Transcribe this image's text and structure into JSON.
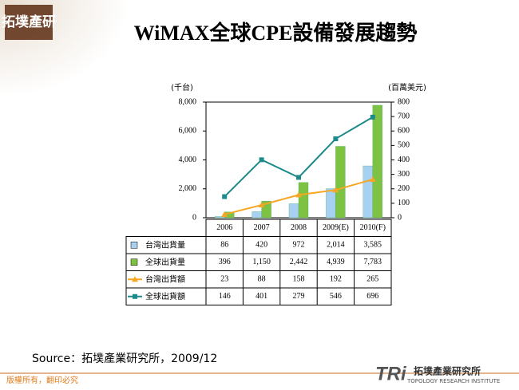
{
  "page": {
    "logo": "拓墣產研",
    "source": "Source：拓墣產業研究所，2009/12",
    "footer": "版權所有，翻印必究",
    "brand": "拓墣產業研究所",
    "brand_en": "TOPOLOGY RESEARCH INSTITUTE",
    "brand_mark": "TRi"
  },
  "chart_data": {
    "type": "bar",
    "title": "WiMAX全球CPE設備發展趨勢",
    "y_label": "(千台)",
    "y2_label": "(百萬美元)",
    "categories": [
      "2006",
      "2007",
      "2008",
      "2009(E)",
      "2010(F)"
    ],
    "series": [
      {
        "name": "台灣出貨量",
        "type": "bar",
        "color": "#a8d0f0",
        "values": [
          86,
          420,
          972,
          2014,
          3585
        ],
        "value_labels": [
          "86",
          "420",
          "972",
          "2,014",
          "3,585"
        ]
      },
      {
        "name": "全球出貨量",
        "type": "bar",
        "color": "#7dc242",
        "values": [
          396,
          1150,
          2442,
          4939,
          7783
        ],
        "value_labels": [
          "396",
          "1,150",
          "2,442",
          "4,939",
          "7,783"
        ]
      },
      {
        "name": "台灣出貨額",
        "type": "line",
        "axis": "y2",
        "color": "#f5a623",
        "marker": "triangle",
        "values": [
          23,
          88,
          158,
          192,
          265
        ]
      },
      {
        "name": "全球出貨額",
        "type": "line",
        "axis": "y2",
        "color": "#1e8a8a",
        "marker": "square",
        "values": [
          146,
          401,
          279,
          546,
          696
        ]
      }
    ],
    "ylim": [
      0,
      8000
    ],
    "yticks": [
      0,
      {
        "value": 2000,
        "label": "2,000"
      },
      {
        "value": 4000,
        "label": "4,000"
      },
      {
        "value": 6000,
        "label": "6,000"
      },
      {
        "value": 8000,
        "label": "8,000"
      }
    ],
    "y2lim": [
      0,
      800
    ],
    "y2ticks": [
      0,
      100,
      200,
      300,
      400,
      500,
      600,
      700,
      800
    ]
  }
}
